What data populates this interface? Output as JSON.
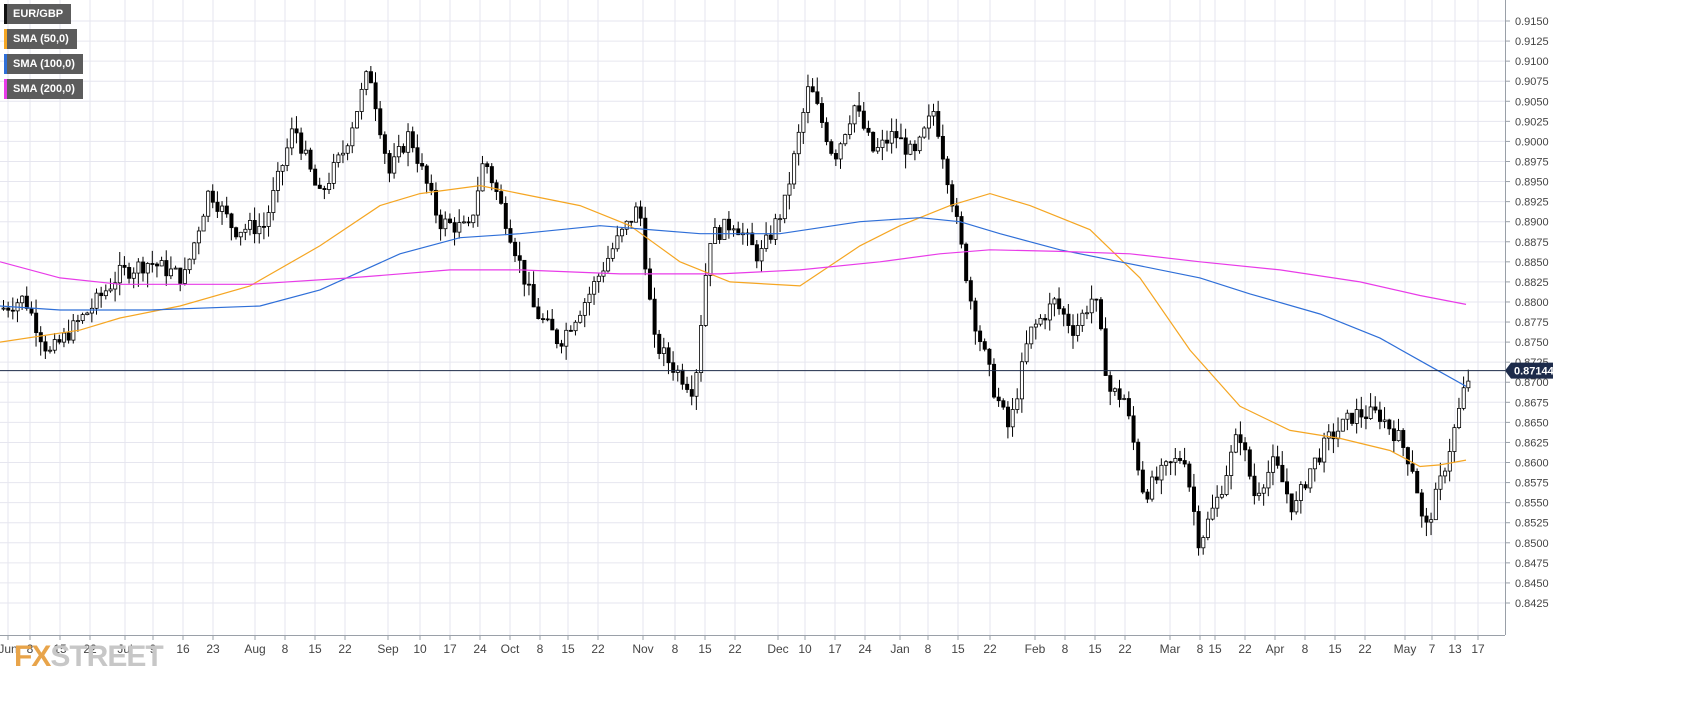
{
  "legend": [
    {
      "label": "EUR/GBP",
      "color": "#111111"
    },
    {
      "label": "SMA (50,0)",
      "color": "#f5a623"
    },
    {
      "label": "SMA (100,0)",
      "color": "#2f6fd8"
    },
    {
      "label": "SMA (200,0)",
      "color": "#e83ce8"
    }
  ],
  "logo": {
    "part1": "FX",
    "part2": "STREET"
  },
  "current_price": "0.87144",
  "chart_data": {
    "type": "candlestick",
    "title": "",
    "xlabel": "",
    "ylabel": "",
    "ylim": [
      0.8425,
      0.915
    ],
    "y_ticks": [
      "0.8425",
      "0.8450",
      "0.8475",
      "0.8500",
      "0.8525",
      "0.8550",
      "0.8575",
      "0.8600",
      "0.8625",
      "0.8650",
      "0.8675",
      "0.8700",
      "0.8725",
      "0.8750",
      "0.8775",
      "0.8800",
      "0.8825",
      "0.8850",
      "0.8875",
      "0.8900",
      "0.8925",
      "0.8950",
      "0.8975",
      "0.9000",
      "0.9025",
      "0.9050",
      "0.9075",
      "0.9100",
      "0.9125",
      "0.9150"
    ],
    "x_ticks": [
      "Jun",
      "8",
      "15",
      "22",
      "Jul",
      "9",
      "16",
      "23",
      "Aug",
      "8",
      "15",
      "22",
      "Sep",
      "10",
      "17",
      "24",
      "Oct",
      "8",
      "15",
      "22",
      "Nov",
      "8",
      "15",
      "22",
      "Dec",
      "10",
      "17",
      "24",
      "Jan",
      "8",
      "15",
      "22",
      "Feb",
      "8",
      "15",
      "22",
      "Mar",
      "8",
      "15",
      "22",
      "Apr",
      "8",
      "15",
      "22",
      "May",
      "7",
      "13",
      "17"
    ],
    "grid": true,
    "legend_position": "top-left",
    "current_price_line": 0.87144,
    "price_path": [
      [
        0,
        0.879
      ],
      [
        25,
        0.8805
      ],
      [
        50,
        0.8735
      ],
      [
        90,
        0.879
      ],
      [
        120,
        0.8835
      ],
      [
        150,
        0.885
      ],
      [
        185,
        0.883
      ],
      [
        210,
        0.894
      ],
      [
        235,
        0.889
      ],
      [
        265,
        0.8895
      ],
      [
        295,
        0.902
      ],
      [
        320,
        0.893
      ],
      [
        345,
        0.899
      ],
      [
        370,
        0.909
      ],
      [
        390,
        0.896
      ],
      [
        410,
        0.901
      ],
      [
        440,
        0.89
      ],
      [
        470,
        0.889
      ],
      [
        485,
        0.898
      ],
      [
        510,
        0.889
      ],
      [
        535,
        0.879
      ],
      [
        560,
        0.875
      ],
      [
        590,
        0.881
      ],
      [
        615,
        0.887
      ],
      [
        640,
        0.892
      ],
      [
        655,
        0.875
      ],
      [
        670,
        0.8725
      ],
      [
        695,
        0.869
      ],
      [
        710,
        0.888
      ],
      [
        735,
        0.89
      ],
      [
        760,
        0.8855
      ],
      [
        785,
        0.892
      ],
      [
        810,
        0.907
      ],
      [
        835,
        0.898
      ],
      [
        855,
        0.9045
      ],
      [
        875,
        0.8985
      ],
      [
        895,
        0.901
      ],
      [
        915,
        0.898
      ],
      [
        935,
        0.904
      ],
      [
        955,
        0.8915
      ],
      [
        975,
        0.878
      ],
      [
        995,
        0.869
      ],
      [
        1010,
        0.864
      ],
      [
        1030,
        0.876
      ],
      [
        1055,
        0.88
      ],
      [
        1075,
        0.8765
      ],
      [
        1095,
        0.881
      ],
      [
        1110,
        0.869
      ],
      [
        1125,
        0.868
      ],
      [
        1145,
        0.856
      ],
      [
        1165,
        0.859
      ],
      [
        1185,
        0.861
      ],
      [
        1200,
        0.85
      ],
      [
        1220,
        0.856
      ],
      [
        1240,
        0.864
      ],
      [
        1255,
        0.856
      ],
      [
        1275,
        0.86
      ],
      [
        1295,
        0.854
      ],
      [
        1310,
        0.859
      ],
      [
        1330,
        0.863
      ],
      [
        1355,
        0.866
      ],
      [
        1380,
        0.866
      ],
      [
        1400,
        0.863
      ],
      [
        1415,
        0.859
      ],
      [
        1425,
        0.851
      ],
      [
        1440,
        0.857
      ],
      [
        1455,
        0.864
      ],
      [
        1465,
        0.869
      ],
      [
        1472,
        0.8714
      ]
    ],
    "sma50": [
      [
        0,
        0.875
      ],
      [
        80,
        0.8765
      ],
      [
        120,
        0.878
      ],
      [
        180,
        0.8795
      ],
      [
        250,
        0.882
      ],
      [
        320,
        0.887
      ],
      [
        380,
        0.892
      ],
      [
        420,
        0.8935
      ],
      [
        480,
        0.8945
      ],
      [
        520,
        0.8935
      ],
      [
        580,
        0.892
      ],
      [
        630,
        0.8895
      ],
      [
        680,
        0.885
      ],
      [
        730,
        0.8825
      ],
      [
        800,
        0.882
      ],
      [
        860,
        0.887
      ],
      [
        900,
        0.8895
      ],
      [
        950,
        0.892
      ],
      [
        990,
        0.8935
      ],
      [
        1030,
        0.892
      ],
      [
        1090,
        0.889
      ],
      [
        1140,
        0.883
      ],
      [
        1190,
        0.874
      ],
      [
        1240,
        0.867
      ],
      [
        1290,
        0.864
      ],
      [
        1340,
        0.863
      ],
      [
        1390,
        0.8615
      ],
      [
        1420,
        0.8595
      ],
      [
        1440,
        0.8597
      ],
      [
        1466,
        0.8603
      ]
    ],
    "sma100": [
      [
        0,
        0.8795
      ],
      [
        60,
        0.879
      ],
      [
        150,
        0.879
      ],
      [
        260,
        0.8795
      ],
      [
        320,
        0.8815
      ],
      [
        400,
        0.886
      ],
      [
        460,
        0.888
      ],
      [
        520,
        0.8885
      ],
      [
        600,
        0.8895
      ],
      [
        700,
        0.8885
      ],
      [
        780,
        0.8885
      ],
      [
        860,
        0.89
      ],
      [
        920,
        0.8905
      ],
      [
        960,
        0.89
      ],
      [
        1000,
        0.8885
      ],
      [
        1060,
        0.8865
      ],
      [
        1120,
        0.885
      ],
      [
        1200,
        0.883
      ],
      [
        1250,
        0.881
      ],
      [
        1320,
        0.8785
      ],
      [
        1380,
        0.8755
      ],
      [
        1430,
        0.872
      ],
      [
        1466,
        0.8695
      ]
    ],
    "sma200": [
      [
        0,
        0.885
      ],
      [
        60,
        0.883
      ],
      [
        120,
        0.8822
      ],
      [
        250,
        0.8822
      ],
      [
        350,
        0.883
      ],
      [
        450,
        0.884
      ],
      [
        520,
        0.884
      ],
      [
        620,
        0.8835
      ],
      [
        720,
        0.8835
      ],
      [
        800,
        0.884
      ],
      [
        880,
        0.885
      ],
      [
        940,
        0.886
      ],
      [
        990,
        0.8865
      ],
      [
        1060,
        0.8863
      ],
      [
        1130,
        0.886
      ],
      [
        1200,
        0.885
      ],
      [
        1280,
        0.884
      ],
      [
        1360,
        0.8825
      ],
      [
        1420,
        0.8808
      ],
      [
        1466,
        0.8797
      ]
    ]
  }
}
